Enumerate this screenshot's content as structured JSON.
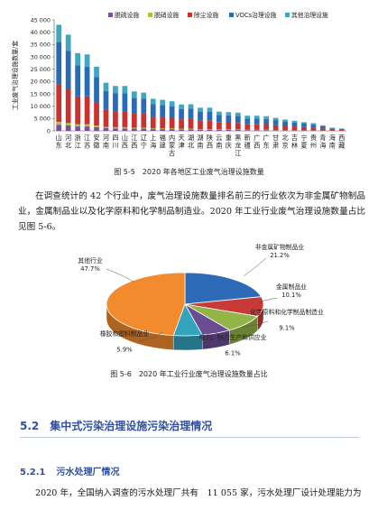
{
  "chart_data": [
    {
      "type": "bar",
      "stacked": true,
      "ylabel": "工业废气治理设施数量/套",
      "yticks": [
        "45 000",
        "40 000",
        "35 000",
        "30 000",
        "25 000",
        "20 000",
        "15 000",
        "10 000",
        "5 000",
        "0"
      ],
      "ylim": [
        0,
        45000
      ],
      "legend_position": "top",
      "categories": [
        "山东",
        "河北",
        "浙江",
        "江苏",
        "安徽",
        "河南",
        "四川",
        "山西",
        "江西",
        "辽宁",
        "上海",
        "福建",
        "内蒙古",
        "天津",
        "湖北",
        "湖南",
        "陕西",
        "云南",
        "重庆",
        "黑龙江",
        "新疆",
        "广西",
        "广东",
        "甘肃",
        "北京",
        "吉林",
        "宁夏",
        "贵州",
        "青海",
        "海南",
        "西藏"
      ],
      "series": [
        {
          "name": "脱硫设施",
          "color": "#7a4fa0",
          "values": [
            2500,
            2200,
            1800,
            1800,
            1500,
            1100,
            1000,
            1000,
            900,
            900,
            700,
            700,
            700,
            600,
            600,
            500,
            500,
            400,
            400,
            400,
            300,
            300,
            300,
            250,
            200,
            200,
            150,
            150,
            100,
            60,
            40
          ]
        },
        {
          "name": "脱硝设施",
          "color": "#a6c43f",
          "values": [
            1200,
            1000,
            900,
            900,
            700,
            500,
            500,
            500,
            400,
            400,
            300,
            300,
            300,
            300,
            300,
            200,
            200,
            200,
            200,
            200,
            150,
            150,
            150,
            100,
            100,
            100,
            80,
            80,
            50,
            30,
            20
          ]
        },
        {
          "name": "除尘设施",
          "color": "#c8332f",
          "values": [
            15300,
            13800,
            11300,
            11300,
            9300,
            6900,
            6500,
            6500,
            5800,
            5700,
            4700,
            4500,
            4300,
            3800,
            3900,
            3400,
            3400,
            2800,
            2700,
            2600,
            2200,
            2200,
            2100,
            1900,
            1700,
            1500,
            1300,
            1100,
            800,
            440,
            340
          ]
        },
        {
          "name": "VOCs治理设施",
          "color": "#2a6bb5",
          "values": [
            17000,
            15500,
            12500,
            12000,
            10300,
            7700,
            7200,
            7200,
            6300,
            6000,
            5100,
            5000,
            4700,
            4200,
            4200,
            3700,
            3700,
            3100,
            3000,
            2900,
            2400,
            2400,
            2300,
            2100,
            1800,
            1600,
            1400,
            1200,
            900,
            500,
            400
          ]
        },
        {
          "name": "其他治理设施",
          "color": "#3fa7bf",
          "values": [
            7000,
            6500,
            5000,
            5000,
            4200,
            3300,
            3000,
            3000,
            2600,
            2500,
            2200,
            2100,
            2000,
            1800,
            1800,
            1600,
            1600,
            1300,
            1300,
            1300,
            1100,
            1100,
            1100,
            900,
            800,
            700,
            600,
            600,
            400,
            270,
            200
          ]
        }
      ]
    },
    {
      "type": "pie",
      "slices": [
        {
          "name": "非金属矿物制品业",
          "value": 21.2,
          "label_value": "21.2%",
          "color": "#2d6bb8"
        },
        {
          "name": "金属制品业",
          "value": 10.1,
          "label_value": "10.1%",
          "color": "#c73a37"
        },
        {
          "name": "化学原料和化学制品制造业",
          "value": 9.1,
          "label_value": "9.1%",
          "color": "#93b447"
        },
        {
          "name": "电力、热力生产和供应业",
          "value": 6.1,
          "label_value": "6.1%",
          "color": "#6d4c96"
        },
        {
          "name": "橡胶和塑料制品业",
          "value": 5.9,
          "label_value": "5.9%",
          "color": "#34a3bd"
        },
        {
          "name": "其他行业",
          "value": 47.7,
          "label_value": "47.7%",
          "color": "#f28a2e"
        }
      ]
    }
  ],
  "captions": {
    "fig55": "图 5-5　2020 年各地区工业废气治理设施数量",
    "fig56": "图 5-6　2020 年工业行业废气治理设施数量占比"
  },
  "paragraph1": "在调查统计的 42 个行业中，废气治理设施数量排名前三的行业依次为非金属矿物制品业，金属制品业以及化学原料和化学制品制造业。2020 年工业行业废气治理设施数量占比见图 5-6。",
  "section": {
    "number": "5.2",
    "title": "集中式污染治理设施污染治理情况"
  },
  "subsection": {
    "number": "5.2.1",
    "title": "污水处理厂情况"
  },
  "paragraph2": "2020 年，全国纳入调查的污水处理厂共有　11 055 家，污水处理厂设计处理能力为"
}
